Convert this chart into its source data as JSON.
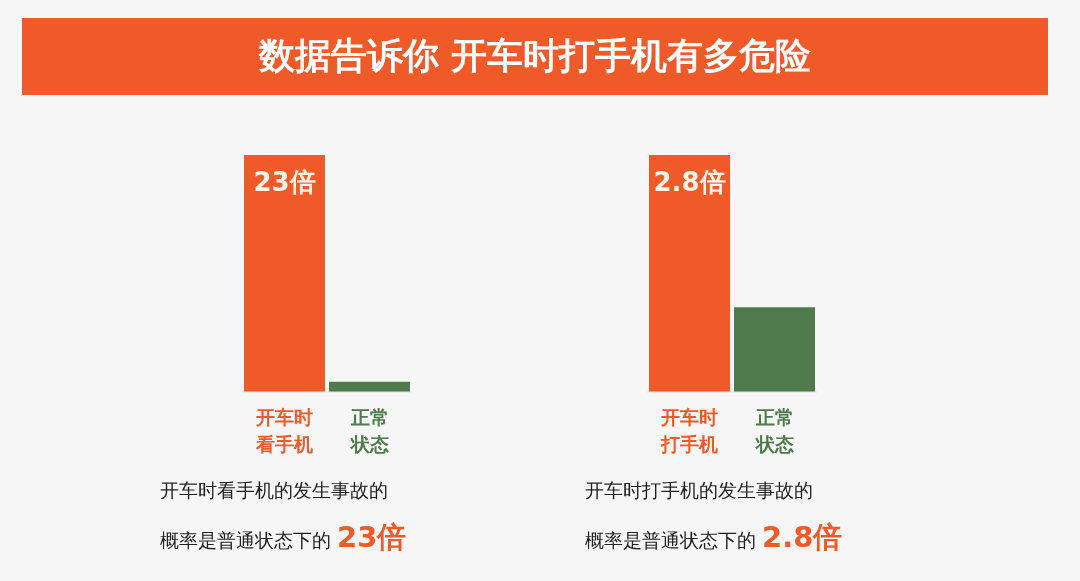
{
  "chart_data": [
    {
      "type": "bar",
      "title": "数据告诉你 开车时打手机有多危险",
      "categories": [
        "开车时看手机",
        "正常状态"
      ],
      "values": [
        23,
        1
      ],
      "colors": [
        "#f05a28",
        "#4f7a4c"
      ],
      "value_labels": [
        "23倍",
        null
      ],
      "annotations": [
        "开车时看手机的发生事故的",
        "概率是普通状态下的 23倍"
      ]
    },
    {
      "type": "bar",
      "categories": [
        "开车时打手机",
        "正常状态"
      ],
      "values": [
        2.8,
        1
      ],
      "colors": [
        "#f05a28",
        "#4f7a4c"
      ],
      "value_labels": [
        "2.8倍",
        null
      ],
      "annotations": [
        "开车时打手机的发生事故的",
        "概率是普通状态下的 2.8倍"
      ]
    }
  ]
}
